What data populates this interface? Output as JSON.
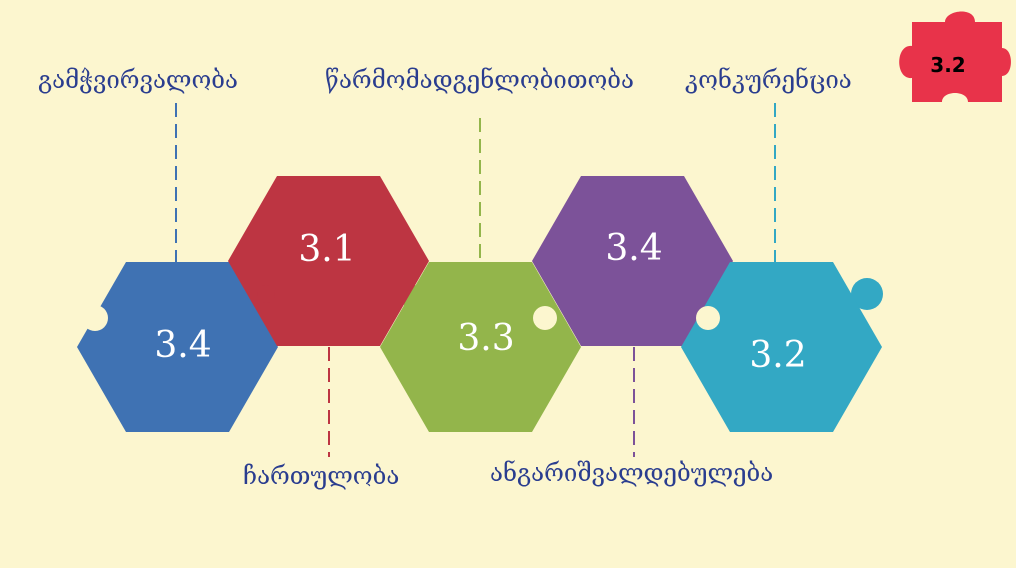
{
  "badge": {
    "label": "3.2",
    "color": "#e8334a"
  },
  "hexagons": [
    {
      "id": "blue",
      "label": "3.4",
      "color": "#3f72b3"
    },
    {
      "id": "red",
      "label": "3.1",
      "color": "#bd3542"
    },
    {
      "id": "green",
      "label": "3.3",
      "color": "#93b54b"
    },
    {
      "id": "purple",
      "label": "3.4",
      "color": "#7c5299"
    },
    {
      "id": "teal",
      "label": "3.2",
      "color": "#33a8c4"
    }
  ],
  "labels": {
    "transparency": "გამჭვირვალობა",
    "representativeness": "წარმომადგენლობითობა",
    "competition": "კონკურენცია",
    "participation": "ჩართულობა",
    "accountability": "ანგარიშვალდებულება"
  },
  "text_color": "#2a3d8f"
}
